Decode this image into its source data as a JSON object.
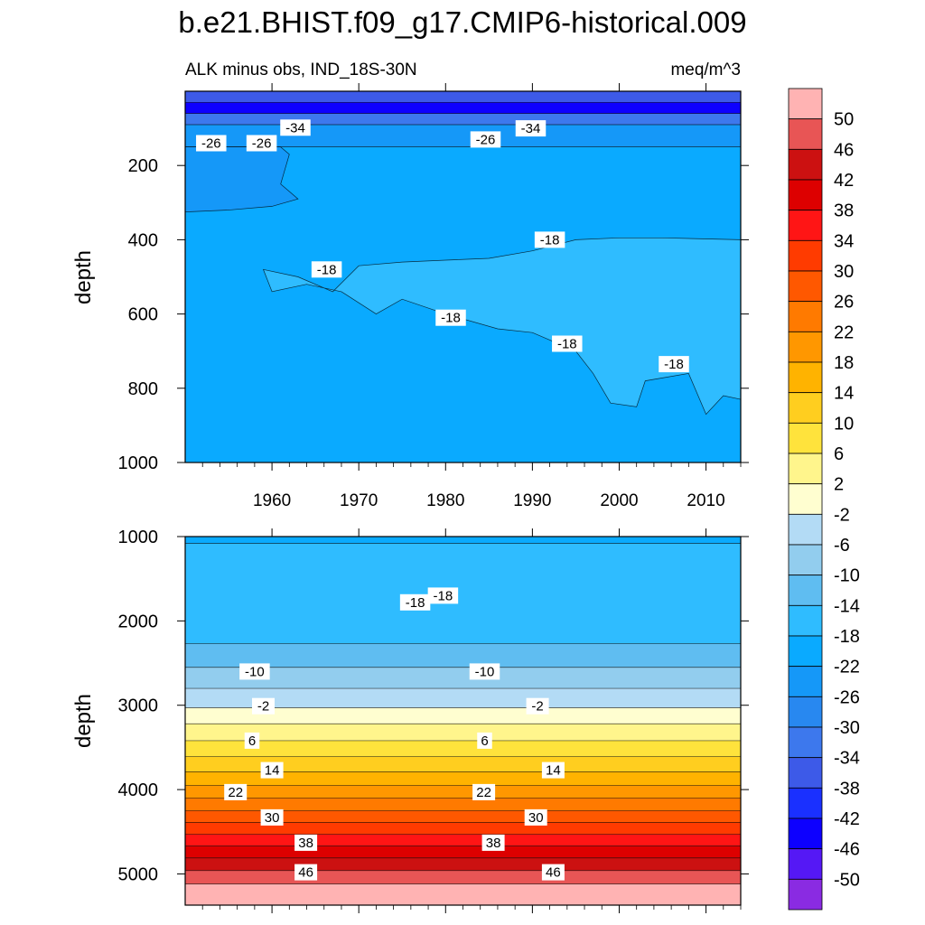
{
  "title": "b.e21.BHIST.f09_g17.CMIP6-historical.009",
  "chart_data": [
    {
      "type": "contour",
      "panel": "upper",
      "left_label": "ALK minus obs, IND_18S-30N",
      "right_label": "meq/m^3",
      "ylabel": "depth",
      "xlim": [
        1950,
        2014
      ],
      "ylim": [
        0,
        1000
      ],
      "y_reversed": true,
      "x_ticks": [
        1960,
        1970,
        1980,
        1990,
        2000,
        2010
      ],
      "x_tick_labels": [
        "1960",
        "1970",
        "1980",
        "1990",
        "2000",
        "2010"
      ],
      "y_ticks": [
        200,
        400,
        600,
        800,
        1000
      ],
      "y_tick_labels": [
        "200",
        "400",
        "600",
        "800",
        "1000"
      ],
      "bands": [
        {
          "top": 0,
          "bottom": 30,
          "value": -38
        },
        {
          "top": 30,
          "bottom": 60,
          "value": -46
        },
        {
          "top": 60,
          "bottom": 90,
          "value": -34
        },
        {
          "top": 90,
          "bottom": 150,
          "value": -26
        },
        {
          "top": 150,
          "bottom": 1000,
          "value": -20
        }
      ],
      "contour_labels": [
        {
          "x": 1953.0,
          "y": 140,
          "text": "-26"
        },
        {
          "x": 1953.7,
          "y": 140,
          "text": "-26",
          "hidden": true
        },
        {
          "x": 1958.8,
          "y": 140,
          "text": "-26"
        },
        {
          "x": 1962.7,
          "y": 98,
          "text": "-34"
        },
        {
          "x": 1984.6,
          "y": 130,
          "text": "-26"
        },
        {
          "x": 1989.8,
          "y": 100,
          "text": "-34"
        },
        {
          "x": 1966.3,
          "y": 480,
          "text": "-18"
        },
        {
          "x": 1980.6,
          "y": 610,
          "text": "-18"
        },
        {
          "x": 1992.0,
          "y": 400,
          "text": "-18"
        },
        {
          "x": 1994.0,
          "y": 680,
          "text": "-18"
        },
        {
          "x": 2006.3,
          "y": 735,
          "text": "-18"
        }
      ]
    },
    {
      "type": "contour",
      "panel": "lower",
      "ylabel": "depth",
      "xlim": [
        1950,
        2014
      ],
      "ylim": [
        1000,
        5370
      ],
      "y_reversed": true,
      "y_ticks": [
        1000,
        2000,
        3000,
        4000,
        5000
      ],
      "y_tick_labels": [
        "1000",
        "2000",
        "3000",
        "4000",
        "5000"
      ],
      "bands": [
        {
          "top": 1000,
          "bottom": 1080,
          "value": -20
        },
        {
          "top": 1080,
          "bottom": 2270,
          "value": -16
        },
        {
          "top": 2270,
          "bottom": 2550,
          "value": -12
        },
        {
          "top": 2550,
          "bottom": 2800,
          "value": -8
        },
        {
          "top": 2800,
          "bottom": 3030,
          "value": -4
        },
        {
          "top": 3030,
          "bottom": 3220,
          "value": 0
        },
        {
          "top": 3220,
          "bottom": 3420,
          "value": 4
        },
        {
          "top": 3420,
          "bottom": 3610,
          "value": 8
        },
        {
          "top": 3610,
          "bottom": 3790,
          "value": 12
        },
        {
          "top": 3790,
          "bottom": 3950,
          "value": 16
        },
        {
          "top": 3950,
          "bottom": 4100,
          "value": 20
        },
        {
          "top": 4100,
          "bottom": 4250,
          "value": 24
        },
        {
          "top": 4250,
          "bottom": 4390,
          "value": 28
        },
        {
          "top": 4390,
          "bottom": 4530,
          "value": 32
        },
        {
          "top": 4530,
          "bottom": 4670,
          "value": 36
        },
        {
          "top": 4670,
          "bottom": 4810,
          "value": 40
        },
        {
          "top": 4810,
          "bottom": 4960,
          "value": 44
        },
        {
          "top": 4960,
          "bottom": 5120,
          "value": 48
        },
        {
          "top": 5120,
          "bottom": 5370,
          "value": 52
        }
      ],
      "contour_labels": [
        {
          "x": 1976.5,
          "y": 1780,
          "text": "-18"
        },
        {
          "x": 1979.7,
          "y": 1700,
          "text": "-18"
        },
        {
          "x": 1958.0,
          "y": 2600,
          "text": "-10"
        },
        {
          "x": 1984.5,
          "y": 2600,
          "text": "-10"
        },
        {
          "x": 1959.0,
          "y": 3010,
          "text": "-2"
        },
        {
          "x": 1990.6,
          "y": 3010,
          "text": "-2"
        },
        {
          "x": 1957.7,
          "y": 3420,
          "text": "6"
        },
        {
          "x": 1984.5,
          "y": 3420,
          "text": "6"
        },
        {
          "x": 1960.0,
          "y": 3770,
          "text": "14"
        },
        {
          "x": 1992.4,
          "y": 3770,
          "text": "14"
        },
        {
          "x": 1955.8,
          "y": 4030,
          "text": "22"
        },
        {
          "x": 1984.4,
          "y": 4030,
          "text": "22"
        },
        {
          "x": 1960.0,
          "y": 4330,
          "text": "30"
        },
        {
          "x": 1990.4,
          "y": 4330,
          "text": "30"
        },
        {
          "x": 1963.9,
          "y": 4630,
          "text": "38"
        },
        {
          "x": 1985.5,
          "y": 4630,
          "text": "38"
        },
        {
          "x": 1963.9,
          "y": 4980,
          "text": "46"
        },
        {
          "x": 1992.4,
          "y": 4980,
          "text": "46"
        }
      ]
    }
  ],
  "colorbar": {
    "levels": [
      "50",
      "46",
      "42",
      "38",
      "34",
      "30",
      "26",
      "22",
      "18",
      "14",
      "10",
      "6",
      "2",
      "-2",
      "-6",
      "-10",
      "-14",
      "-18",
      "-22",
      "-26",
      "-30",
      "-34",
      "-38",
      "-42",
      "-46",
      "-50"
    ],
    "colors": [
      "#ffb3b3",
      "#e85555",
      "#cc1111",
      "#dd0000",
      "#ff1515",
      "#ff3b00",
      "#ff5800",
      "#ff7a00",
      "#ff9700",
      "#ffb300",
      "#ffce1f",
      "#ffe33c",
      "#fff58c",
      "#fffed0",
      "#b3dbf5",
      "#92cdee",
      "#5fbdf1",
      "#2fbcff",
      "#0aaaff",
      "#1598f8",
      "#2888f0",
      "#3d78ed",
      "#3d5ae8",
      "#1a30ff",
      "#0d00ff",
      "#5518f5",
      "#8a2be2"
    ]
  }
}
